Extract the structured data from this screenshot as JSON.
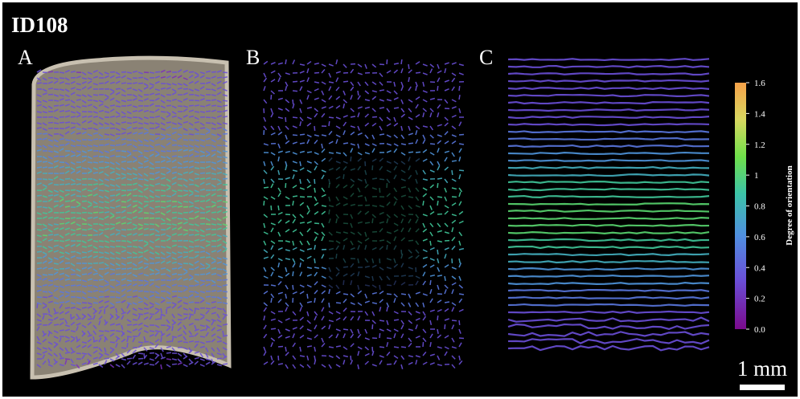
{
  "title": "ID108",
  "panels": [
    {
      "label": "A"
    },
    {
      "label": "B"
    },
    {
      "label": "C"
    }
  ],
  "colorbar": {
    "label": "Degree of orientation",
    "lim": [
      0,
      1.6
    ],
    "ticks": [
      {
        "value": 0,
        "label": "0.0"
      },
      0.2,
      0.4,
      0.6,
      0.8,
      1,
      1.2,
      1.4,
      1.6
    ]
  },
  "scale_bar": "1 mm"
}
